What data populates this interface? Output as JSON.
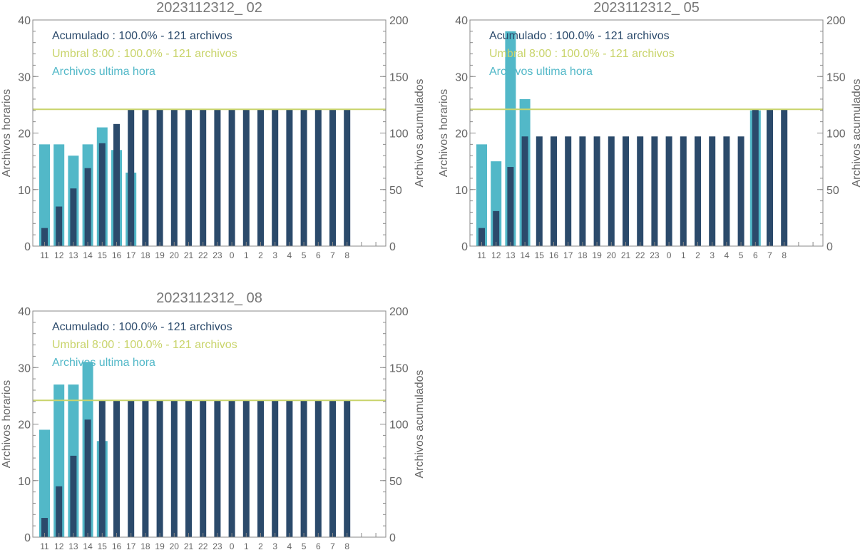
{
  "colors": {
    "hourly": "#52B8C8",
    "cumulative": "#2B4A6B",
    "threshold": "#C9D46B",
    "axis": "#666666",
    "frame": "#888888"
  },
  "legend": {
    "cumulative_label": "Acumulado : 100.0% - 121 archivos",
    "threshold_label": "Umbral 8:00 : 100.0% - 121 archivos",
    "hourly_label": "Archivos ultima hora"
  },
  "axes": {
    "left_label": "Archivos horarios",
    "right_label": "Archivos acumulados"
  },
  "chart_data": [
    {
      "type": "bar",
      "title": "2023112312_ 02",
      "categories": [
        "11",
        "12",
        "13",
        "14",
        "15",
        "16",
        "17",
        "18",
        "19",
        "20",
        "21",
        "22",
        "23",
        "0",
        "1",
        "2",
        "3",
        "4",
        "5",
        "6",
        "7",
        "8"
      ],
      "left_ylim": [
        0,
        40
      ],
      "left_ticks": [
        0,
        10,
        20,
        30,
        40
      ],
      "right_ylim": [
        0,
        200
      ],
      "right_ticks": [
        0,
        50,
        100,
        150,
        200
      ],
      "threshold": 121,
      "series": [
        {
          "name": "Archivos ultima hora",
          "axis": "left",
          "values": [
            18,
            18,
            16,
            18,
            21,
            17,
            13,
            0,
            0,
            0,
            0,
            0,
            0,
            0,
            0,
            0,
            0,
            0,
            0,
            0,
            0,
            0
          ]
        },
        {
          "name": "Acumulado",
          "axis": "right",
          "values": [
            16,
            35,
            51,
            69,
            91,
            108,
            121,
            121,
            121,
            121,
            121,
            121,
            121,
            121,
            121,
            121,
            121,
            121,
            121,
            121,
            121,
            121
          ]
        }
      ]
    },
    {
      "type": "bar",
      "title": "2023112312_ 05",
      "categories": [
        "11",
        "12",
        "13",
        "14",
        "15",
        "16",
        "17",
        "18",
        "19",
        "20",
        "21",
        "22",
        "23",
        "0",
        "1",
        "2",
        "3",
        "4",
        "5",
        "6",
        "7",
        "8"
      ],
      "left_ylim": [
        0,
        40
      ],
      "left_ticks": [
        0,
        10,
        20,
        30,
        40
      ],
      "right_ylim": [
        0,
        200
      ],
      "right_ticks": [
        0,
        50,
        100,
        150,
        200
      ],
      "threshold": 121,
      "series": [
        {
          "name": "Archivos ultima hora",
          "axis": "left",
          "values": [
            18,
            15,
            38,
            26,
            0,
            0,
            0,
            0,
            0,
            0,
            0,
            0,
            0,
            0,
            0,
            0,
            0,
            0,
            0,
            24,
            0,
            0
          ]
        },
        {
          "name": "Acumulado",
          "axis": "right",
          "values": [
            16,
            31,
            70,
            97,
            97,
            97,
            97,
            97,
            97,
            97,
            97,
            97,
            97,
            97,
            97,
            97,
            97,
            97,
            97,
            121,
            121,
            121
          ]
        }
      ]
    },
    {
      "type": "bar",
      "title": "2023112312_ 08",
      "categories": [
        "11",
        "12",
        "13",
        "14",
        "15",
        "16",
        "17",
        "18",
        "19",
        "20",
        "21",
        "22",
        "23",
        "0",
        "1",
        "2",
        "3",
        "4",
        "5",
        "6",
        "7",
        "8"
      ],
      "left_ylim": [
        0,
        40
      ],
      "left_ticks": [
        0,
        10,
        20,
        30,
        40
      ],
      "right_ylim": [
        0,
        200
      ],
      "right_ticks": [
        0,
        50,
        100,
        150,
        200
      ],
      "threshold": 121,
      "series": [
        {
          "name": "Archivos ultima hora",
          "axis": "left",
          "values": [
            19,
            27,
            27,
            31,
            17,
            0,
            0,
            0,
            0,
            0,
            0,
            0,
            0,
            0,
            0,
            0,
            0,
            0,
            0,
            0,
            0,
            0
          ]
        },
        {
          "name": "Acumulado",
          "axis": "right",
          "values": [
            17,
            45,
            72,
            104,
            121,
            121,
            121,
            121,
            121,
            121,
            121,
            121,
            121,
            121,
            121,
            121,
            121,
            121,
            121,
            121,
            121,
            121
          ]
        }
      ]
    }
  ]
}
